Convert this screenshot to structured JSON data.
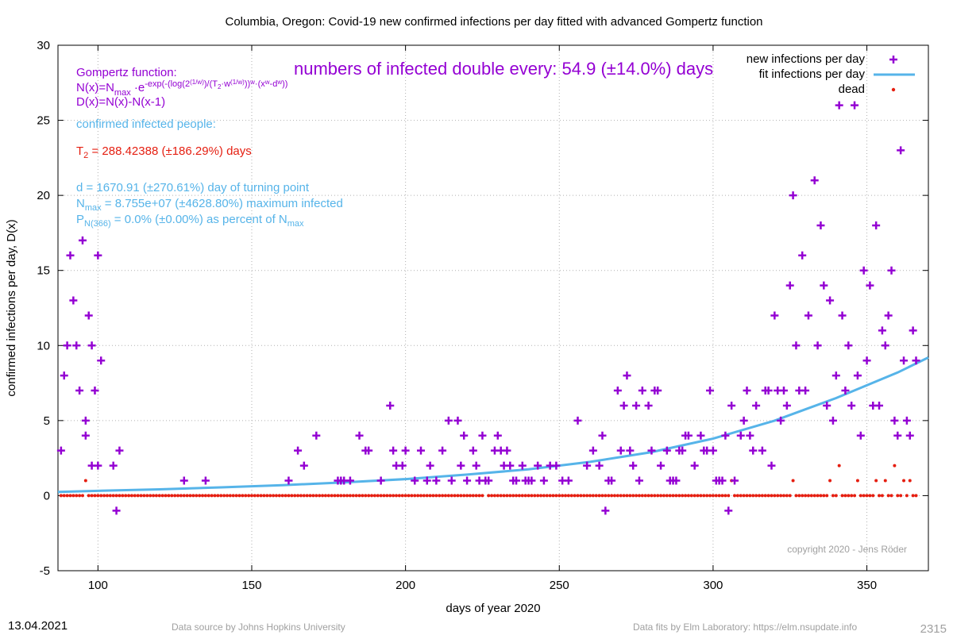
{
  "chart_data": {
    "type": "scatter",
    "title": "Columbia,  Oregon: Covid-19 new confirmed infections per day fitted with advanced Gompertz function",
    "xlabel": "days of year 2020",
    "ylabel": "confirmed infections per day, D(x)",
    "xlim": [
      87,
      370
    ],
    "ylim": [
      -5,
      30
    ],
    "x_ticks": [
      100,
      150,
      200,
      250,
      300,
      350
    ],
    "y_ticks": [
      -5,
      0,
      5,
      10,
      15,
      20,
      25,
      30
    ],
    "grid": true,
    "legend_position": "top-right",
    "colors": {
      "infections": "#9400d3",
      "fit": "#56b4e9",
      "dead": "#e51e10",
      "formula": "#9400d3",
      "params": "#56b4e9",
      "t2": "#e51e10",
      "copyright": "#a0a0a0",
      "footer": "#a0a0a0"
    },
    "series": [
      {
        "name": "new infections per day",
        "marker": "plus",
        "points": [
          [
            88,
            3
          ],
          [
            89,
            8
          ],
          [
            90,
            10
          ],
          [
            91,
            16
          ],
          [
            92,
            13
          ],
          [
            93,
            10
          ],
          [
            94,
            7
          ],
          [
            95,
            17
          ],
          [
            96,
            5
          ],
          [
            96,
            4
          ],
          [
            97,
            12
          ],
          [
            98,
            10
          ],
          [
            98,
            2
          ],
          [
            99,
            7
          ],
          [
            100,
            16
          ],
          [
            100,
            2
          ],
          [
            101,
            9
          ],
          [
            105,
            2
          ],
          [
            106,
            -1
          ],
          [
            107,
            3
          ],
          [
            128,
            1
          ],
          [
            135,
            1
          ],
          [
            162,
            1
          ],
          [
            165,
            3
          ],
          [
            167,
            2
          ],
          [
            171,
            4
          ],
          [
            178,
            1
          ],
          [
            179,
            1
          ],
          [
            180,
            1
          ],
          [
            182,
            1
          ],
          [
            185,
            4
          ],
          [
            187,
            3
          ],
          [
            188,
            3
          ],
          [
            192,
            1
          ],
          [
            195,
            6
          ],
          [
            196,
            3
          ],
          [
            197,
            2
          ],
          [
            199,
            2
          ],
          [
            200,
            3
          ],
          [
            203,
            1
          ],
          [
            205,
            3
          ],
          [
            207,
            1
          ],
          [
            208,
            2
          ],
          [
            210,
            1
          ],
          [
            212,
            3
          ],
          [
            214,
            5
          ],
          [
            215,
            1
          ],
          [
            217,
            5
          ],
          [
            218,
            2
          ],
          [
            219,
            4
          ],
          [
            220,
            1
          ],
          [
            222,
            3
          ],
          [
            223,
            2
          ],
          [
            224,
            1
          ],
          [
            225,
            4
          ],
          [
            226,
            1
          ],
          [
            227,
            1
          ],
          [
            229,
            3
          ],
          [
            230,
            4
          ],
          [
            231,
            3
          ],
          [
            232,
            2
          ],
          [
            233,
            3
          ],
          [
            234,
            2
          ],
          [
            235,
            1
          ],
          [
            236,
            1
          ],
          [
            238,
            2
          ],
          [
            239,
            1
          ],
          [
            240,
            1
          ],
          [
            241,
            1
          ],
          [
            243,
            2
          ],
          [
            245,
            1
          ],
          [
            247,
            2
          ],
          [
            249,
            2
          ],
          [
            251,
            1
          ],
          [
            253,
            1
          ],
          [
            256,
            5
          ],
          [
            259,
            2
          ],
          [
            261,
            3
          ],
          [
            263,
            2
          ],
          [
            264,
            4
          ],
          [
            265,
            -1
          ],
          [
            266,
            1
          ],
          [
            267,
            1
          ],
          [
            269,
            7
          ],
          [
            270,
            3
          ],
          [
            271,
            6
          ],
          [
            272,
            8
          ],
          [
            273,
            3
          ],
          [
            274,
            2
          ],
          [
            275,
            6
          ],
          [
            276,
            1
          ],
          [
            277,
            7
          ],
          [
            279,
            6
          ],
          [
            280,
            3
          ],
          [
            281,
            7
          ],
          [
            282,
            7
          ],
          [
            283,
            2
          ],
          [
            285,
            3
          ],
          [
            286,
            1
          ],
          [
            287,
            1
          ],
          [
            288,
            1
          ],
          [
            289,
            3
          ],
          [
            290,
            3
          ],
          [
            291,
            4
          ],
          [
            292,
            4
          ],
          [
            294,
            2
          ],
          [
            296,
            4
          ],
          [
            297,
            3
          ],
          [
            298,
            3
          ],
          [
            299,
            7
          ],
          [
            300,
            3
          ],
          [
            301,
            1
          ],
          [
            302,
            1
          ],
          [
            303,
            1
          ],
          [
            304,
            4
          ],
          [
            305,
            -1
          ],
          [
            306,
            6
          ],
          [
            307,
            1
          ],
          [
            309,
            4
          ],
          [
            310,
            5
          ],
          [
            311,
            7
          ],
          [
            312,
            4
          ],
          [
            313,
            3
          ],
          [
            314,
            6
          ],
          [
            316,
            3
          ],
          [
            317,
            7
          ],
          [
            318,
            7
          ],
          [
            319,
            2
          ],
          [
            320,
            12
          ],
          [
            321,
            7
          ],
          [
            322,
            5
          ],
          [
            323,
            7
          ],
          [
            324,
            6
          ],
          [
            325,
            14
          ],
          [
            326,
            20
          ],
          [
            327,
            10
          ],
          [
            328,
            7
          ],
          [
            329,
            16
          ],
          [
            330,
            7
          ],
          [
            331,
            12
          ],
          [
            333,
            21
          ],
          [
            334,
            10
          ],
          [
            335,
            18
          ],
          [
            336,
            14
          ],
          [
            337,
            6
          ],
          [
            338,
            13
          ],
          [
            339,
            5
          ],
          [
            340,
            8
          ],
          [
            341,
            26
          ],
          [
            342,
            12
          ],
          [
            343,
            7
          ],
          [
            344,
            10
          ],
          [
            345,
            6
          ],
          [
            346,
            26
          ],
          [
            347,
            8
          ],
          [
            348,
            4
          ],
          [
            349,
            15
          ],
          [
            350,
            9
          ],
          [
            351,
            14
          ],
          [
            352,
            6
          ],
          [
            353,
            18
          ],
          [
            354,
            6
          ],
          [
            355,
            11
          ],
          [
            356,
            10
          ],
          [
            357,
            12
          ],
          [
            358,
            15
          ],
          [
            359,
            5
          ],
          [
            360,
            4
          ],
          [
            361,
            23
          ],
          [
            362,
            9
          ],
          [
            363,
            5
          ],
          [
            364,
            4
          ],
          [
            365,
            11
          ],
          [
            366,
            9
          ]
        ]
      },
      {
        "name": "fit infections per day",
        "marker": "line",
        "points": [
          [
            87,
            0.25
          ],
          [
            100,
            0.32
          ],
          [
            120,
            0.42
          ],
          [
            140,
            0.55
          ],
          [
            160,
            0.7
          ],
          [
            180,
            0.88
          ],
          [
            200,
            1.1
          ],
          [
            220,
            1.4
          ],
          [
            240,
            1.75
          ],
          [
            260,
            2.25
          ],
          [
            280,
            2.9
          ],
          [
            300,
            3.8
          ],
          [
            320,
            5.0
          ],
          [
            340,
            6.5
          ],
          [
            360,
            8.2
          ],
          [
            370,
            9.2
          ]
        ]
      },
      {
        "name": "dead",
        "marker": "dot",
        "points": [
          [
            96,
            1
          ],
          [
            226,
            1
          ],
          [
            306,
            1
          ],
          [
            326,
            1
          ],
          [
            338,
            1
          ],
          [
            341,
            2
          ],
          [
            347,
            1
          ],
          [
            353,
            1
          ],
          [
            356,
            1
          ],
          [
            359,
            2
          ],
          [
            362,
            1
          ],
          [
            364,
            1
          ]
        ],
        "zero_range": [
          88,
          366
        ]
      }
    ],
    "annotations": {
      "headline": "numbers of infected double every: 54.9 (±14.0%) days",
      "formula_title": "Gompertz function:",
      "formula_n": "N(x)=N",
      "formula_n_sub": "max",
      "formula_n_e": " ·e",
      "formula_n_exp1": "-exp(-(log(2",
      "formula_n_exp_sup1": "(1/w)",
      "formula_n_exp2": ")/(T",
      "formula_n_exp_sub": "2",
      "formula_n_exp3": "·w",
      "formula_n_exp_sup2": "(1/w)",
      "formula_n_exp4": "))",
      "formula_n_exp_sup3": "w",
      "formula_n_exp5": "·(x",
      "formula_n_exp_sup4": "w",
      "formula_n_exp6": "-d",
      "formula_n_exp_sup5": "w",
      "formula_n_exp7": "))",
      "formula_d": "D(x)=N(x)-N(x-1)",
      "confirmed_label": "confirmed infected people:",
      "t2_prefix": "T",
      "t2_sub": "2",
      "t2_rest": " = 288.42388 (±186.29%) days",
      "d_line": "d = 1670.91 (±270.61%) day of turning point",
      "nmax_prefix": "N",
      "nmax_sub": "max",
      "nmax_rest": " = 8.755e+07 (±4628.80%) maximum infected",
      "p_prefix": "P",
      "p_sub": "N(366)",
      "p_rest": " = 0.0% (±0.00%) as percent of N",
      "p_sub2": "max",
      "copyright": "copyright 2020 - Jens Röder"
    },
    "footer": {
      "date": "13.04.2021",
      "source": "Data source by Johns Hopkins University",
      "fits": "Data fits by Elm Laboratory: https://elm.nsupdate.info",
      "number": "2315"
    }
  }
}
